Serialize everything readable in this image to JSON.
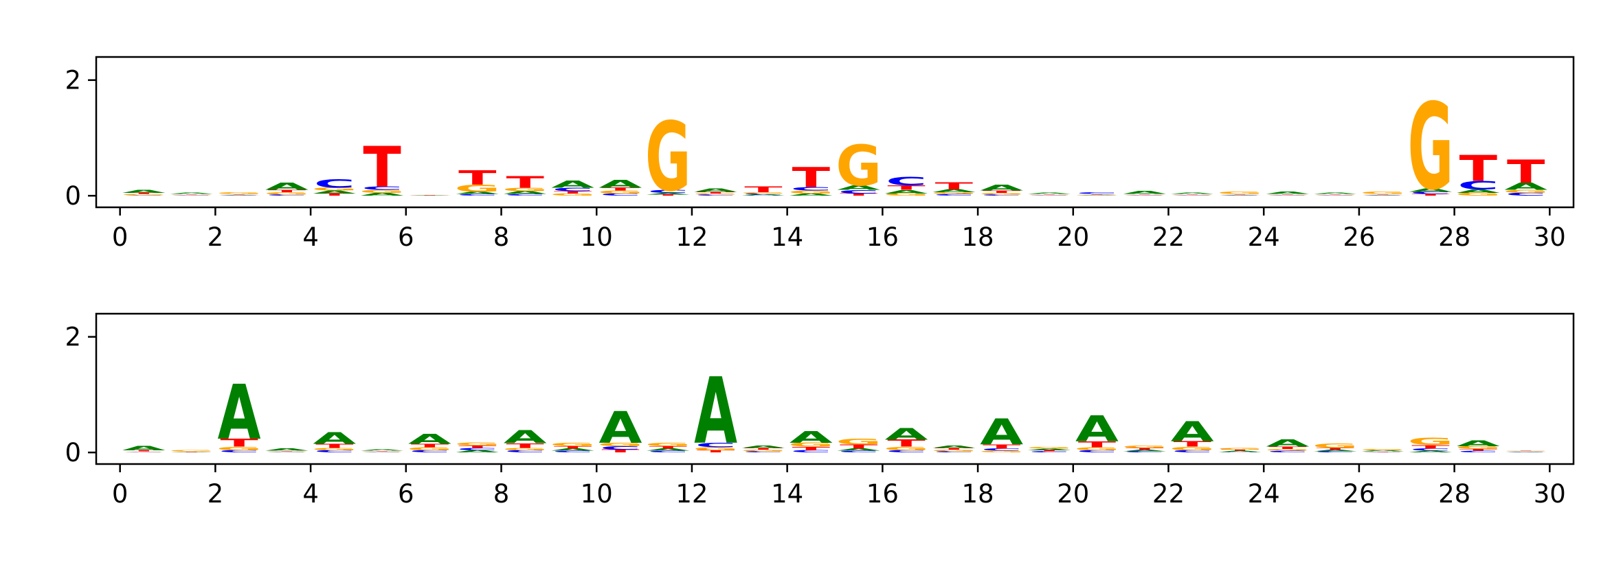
{
  "chart_data": [
    {
      "type": "sequence-logo",
      "alphabet": [
        "A",
        "C",
        "G",
        "T"
      ],
      "colors": {
        "A": "#008000",
        "C": "#0000ff",
        "G": "#ffa500",
        "T": "#ff0000"
      },
      "xlim": [
        -0.5,
        30.5
      ],
      "ylim": [
        -0.2,
        2.4
      ],
      "x_ticks": [
        0,
        2,
        4,
        6,
        8,
        10,
        12,
        14,
        16,
        18,
        20,
        22,
        24,
        26,
        28,
        30
      ],
      "y_ticks": [
        0,
        2
      ],
      "positions": [
        {
          "x": 0.5,
          "A": 0.05,
          "C": 0.01,
          "G": 0.02,
          "T": 0.02
        },
        {
          "x": 1.5,
          "A": 0.02,
          "C": 0.01,
          "G": 0.01,
          "T": 0.01
        },
        {
          "x": 2.5,
          "A": 0.01,
          "C": 0.01,
          "G": 0.03,
          "T": 0.01
        },
        {
          "x": 3.5,
          "A": 0.12,
          "C": 0.02,
          "G": 0.04,
          "T": 0.04
        },
        {
          "x": 4.5,
          "A": 0.05,
          "C": 0.15,
          "G": 0.05,
          "T": 0.04
        },
        {
          "x": 5.5,
          "A": 0.05,
          "C": 0.06,
          "G": 0.05,
          "T": 0.7
        },
        {
          "x": 6.5,
          "A": 0.01,
          "C": 0.0,
          "G": 0.0,
          "T": 0.01
        },
        {
          "x": 7.5,
          "A": 0.04,
          "C": 0.03,
          "G": 0.12,
          "T": 0.25
        },
        {
          "x": 8.5,
          "A": 0.05,
          "C": 0.03,
          "G": 0.06,
          "T": 0.2
        },
        {
          "x": 9.5,
          "A": 0.12,
          "C": 0.06,
          "G": 0.04,
          "T": 0.04
        },
        {
          "x": 10.5,
          "A": 0.14,
          "C": 0.04,
          "G": 0.05,
          "T": 0.05
        },
        {
          "x": 11.5,
          "A": 0.03,
          "C": 0.05,
          "G": 1.2,
          "T": 0.02
        },
        {
          "x": 12.5,
          "A": 0.06,
          "C": 0.02,
          "G": 0.02,
          "T": 0.03
        },
        {
          "x": 13.5,
          "A": 0.02,
          "C": 0.02,
          "G": 0.02,
          "T": 0.1
        },
        {
          "x": 14.5,
          "A": 0.04,
          "C": 0.06,
          "G": 0.05,
          "T": 0.35
        },
        {
          "x": 15.5,
          "A": 0.08,
          "C": 0.06,
          "G": 0.7,
          "T": 0.04
        },
        {
          "x": 16.5,
          "A": 0.06,
          "C": 0.15,
          "G": 0.04,
          "T": 0.08
        },
        {
          "x": 17.5,
          "A": 0.05,
          "C": 0.03,
          "G": 0.03,
          "T": 0.12
        },
        {
          "x": 18.5,
          "A": 0.1,
          "C": 0.02,
          "G": 0.03,
          "T": 0.04
        },
        {
          "x": 19.5,
          "A": 0.02,
          "C": 0.01,
          "G": 0.01,
          "T": 0.01
        },
        {
          "x": 20.5,
          "A": 0.01,
          "C": 0.03,
          "G": 0.01,
          "T": 0.01
        },
        {
          "x": 21.5,
          "A": 0.05,
          "C": 0.01,
          "G": 0.01,
          "T": 0.01
        },
        {
          "x": 22.5,
          "A": 0.02,
          "C": 0.01,
          "G": 0.01,
          "T": 0.01
        },
        {
          "x": 23.5,
          "A": 0.01,
          "C": 0.01,
          "G": 0.04,
          "T": 0.01
        },
        {
          "x": 24.5,
          "A": 0.04,
          "C": 0.01,
          "G": 0.01,
          "T": 0.01
        },
        {
          "x": 25.5,
          "A": 0.02,
          "C": 0.01,
          "G": 0.01,
          "T": 0.01
        },
        {
          "x": 26.5,
          "A": 0.01,
          "C": 0.01,
          "G": 0.04,
          "T": 0.01
        },
        {
          "x": 27.5,
          "A": 0.06,
          "C": 0.04,
          "G": 1.5,
          "T": 0.03
        },
        {
          "x": 28.5,
          "A": 0.06,
          "C": 0.15,
          "G": 0.05,
          "T": 0.45
        },
        {
          "x": 29.5,
          "A": 0.12,
          "C": 0.05,
          "G": 0.05,
          "T": 0.4
        }
      ]
    },
    {
      "type": "sequence-logo",
      "alphabet": [
        "A",
        "C",
        "G",
        "T"
      ],
      "colors": {
        "A": "#008000",
        "C": "#0000ff",
        "G": "#ffa500",
        "T": "#ff0000"
      },
      "xlim": [
        -0.5,
        30.5
      ],
      "ylim": [
        -0.2,
        2.4
      ],
      "x_ticks": [
        0,
        2,
        4,
        6,
        8,
        10,
        12,
        14,
        16,
        18,
        20,
        22,
        24,
        26,
        28,
        30
      ],
      "y_ticks": [
        0,
        2
      ],
      "positions": [
        {
          "x": 0.5,
          "A": 0.08,
          "C": 0.01,
          "G": 0.01,
          "T": 0.02
        },
        {
          "x": 1.5,
          "A": 0.01,
          "C": 0.0,
          "G": 0.02,
          "T": 0.01
        },
        {
          "x": 2.5,
          "A": 0.95,
          "C": 0.04,
          "G": 0.06,
          "T": 0.14
        },
        {
          "x": 3.5,
          "A": 0.04,
          "C": 0.01,
          "G": 0.01,
          "T": 0.01
        },
        {
          "x": 4.5,
          "A": 0.2,
          "C": 0.04,
          "G": 0.04,
          "T": 0.07
        },
        {
          "x": 5.5,
          "A": 0.02,
          "C": 0.01,
          "G": 0.01,
          "T": 0.01
        },
        {
          "x": 6.5,
          "A": 0.17,
          "C": 0.04,
          "G": 0.05,
          "T": 0.06
        },
        {
          "x": 7.5,
          "A": 0.04,
          "C": 0.04,
          "G": 0.05,
          "T": 0.04
        },
        {
          "x": 8.5,
          "A": 0.22,
          "C": 0.04,
          "G": 0.04,
          "T": 0.08
        },
        {
          "x": 9.5,
          "A": 0.04,
          "C": 0.03,
          "G": 0.06,
          "T": 0.04
        },
        {
          "x": 10.5,
          "A": 0.55,
          "C": 0.06,
          "G": 0.06,
          "T": 0.05
        },
        {
          "x": 11.5,
          "A": 0.04,
          "C": 0.03,
          "G": 0.06,
          "T": 0.04
        },
        {
          "x": 12.5,
          "A": 1.15,
          "C": 0.08,
          "G": 0.05,
          "T": 0.04
        },
        {
          "x": 13.5,
          "A": 0.04,
          "C": 0.02,
          "G": 0.03,
          "T": 0.03
        },
        {
          "x": 14.5,
          "A": 0.2,
          "C": 0.04,
          "G": 0.07,
          "T": 0.06
        },
        {
          "x": 15.5,
          "A": 0.04,
          "C": 0.03,
          "G": 0.1,
          "T": 0.07
        },
        {
          "x": 16.5,
          "A": 0.2,
          "C": 0.04,
          "G": 0.06,
          "T": 0.12
        },
        {
          "x": 17.5,
          "A": 0.04,
          "C": 0.02,
          "G": 0.03,
          "T": 0.03
        },
        {
          "x": 18.5,
          "A": 0.45,
          "C": 0.04,
          "G": 0.03,
          "T": 0.07
        },
        {
          "x": 19.5,
          "A": 0.03,
          "C": 0.02,
          "G": 0.03,
          "T": 0.02
        },
        {
          "x": 20.5,
          "A": 0.45,
          "C": 0.04,
          "G": 0.05,
          "T": 0.1
        },
        {
          "x": 21.5,
          "A": 0.03,
          "C": 0.02,
          "G": 0.04,
          "T": 0.03
        },
        {
          "x": 22.5,
          "A": 0.35,
          "C": 0.04,
          "G": 0.06,
          "T": 0.09
        },
        {
          "x": 23.5,
          "A": 0.02,
          "C": 0.01,
          "G": 0.03,
          "T": 0.02
        },
        {
          "x": 24.5,
          "A": 0.12,
          "C": 0.03,
          "G": 0.03,
          "T": 0.04
        },
        {
          "x": 25.5,
          "A": 0.03,
          "C": 0.02,
          "G": 0.08,
          "T": 0.03
        },
        {
          "x": 26.5,
          "A": 0.02,
          "C": 0.01,
          "G": 0.02,
          "T": 0.01
        },
        {
          "x": 27.5,
          "A": 0.03,
          "C": 0.04,
          "G": 0.12,
          "T": 0.06
        },
        {
          "x": 28.5,
          "A": 0.1,
          "C": 0.03,
          "G": 0.05,
          "T": 0.03
        },
        {
          "x": 29.5,
          "A": 0.01,
          "C": 0.01,
          "G": 0.01,
          "T": 0.01
        }
      ]
    }
  ]
}
